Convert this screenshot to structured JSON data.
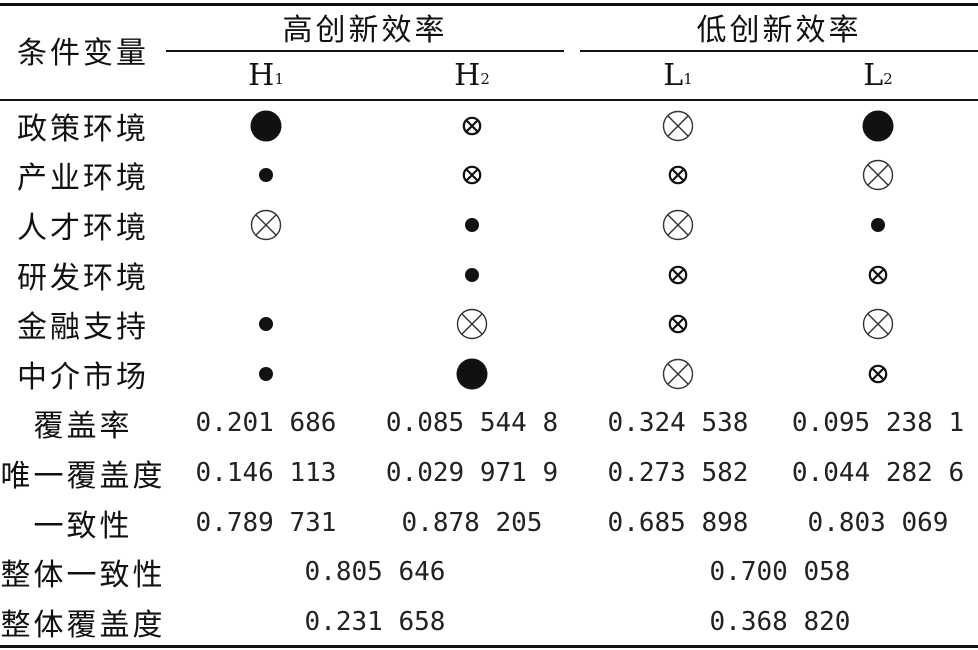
{
  "header": {
    "condition_var": "条件变量",
    "group_high": "高创新效率",
    "group_low": "低创新效率",
    "configs": [
      {
        "letter": "H",
        "sub": "1"
      },
      {
        "letter": "H",
        "sub": "2"
      },
      {
        "letter": "L",
        "sub": "1"
      },
      {
        "letter": "L",
        "sub": "2"
      }
    ]
  },
  "conditions": [
    {
      "label": "政策环境",
      "cells": [
        "core-present",
        "peripheral-absent",
        "core-absent",
        "core-present"
      ]
    },
    {
      "label": "产业环境",
      "cells": [
        "peripheral-present",
        "peripheral-absent",
        "peripheral-absent",
        "core-absent"
      ]
    },
    {
      "label": "人才环境",
      "cells": [
        "core-absent",
        "peripheral-present",
        "core-absent",
        "peripheral-present"
      ]
    },
    {
      "label": "研发环境",
      "cells": [
        "blank",
        "peripheral-present",
        "peripheral-absent",
        "peripheral-absent"
      ]
    },
    {
      "label": "金融支持",
      "cells": [
        "peripheral-present",
        "core-absent",
        "peripheral-absent",
        "core-absent"
      ]
    },
    {
      "label": "中介市场",
      "cells": [
        "peripheral-present",
        "core-present",
        "core-absent",
        "peripheral-absent"
      ]
    }
  ],
  "metrics": [
    {
      "label": "覆盖率",
      "values": [
        "0.201 686",
        "0.085 544 8",
        "0.324 538",
        "0.095 238 1"
      ]
    },
    {
      "label": "唯一覆盖度",
      "values": [
        "0.146 113",
        "0.029 971 9",
        "0.273 582",
        "0.044 282 6"
      ]
    },
    {
      "label": "一致性",
      "values": [
        "0.789 731",
        "0.878 205",
        "0.685 898",
        "0.803 069"
      ]
    }
  ],
  "overall": [
    {
      "label": "整体一致性",
      "high": "0.805 646",
      "low": "0.700 058"
    },
    {
      "label": "整体覆盖度",
      "high": "0.231 658",
      "low": "0.368 820"
    }
  ]
}
